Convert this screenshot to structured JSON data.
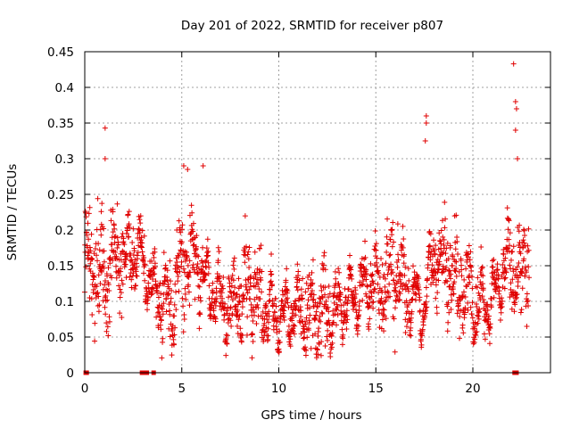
{
  "chart_data": {
    "type": "scatter",
    "title": "Day 201 of 2022, SRMTID for receiver p807",
    "xlabel": "GPS time / hours",
    "ylabel": "SRMTID / TECUs",
    "xlim": [
      0,
      24
    ],
    "ylim": [
      0,
      0.45
    ],
    "xticks": [
      0,
      5,
      10,
      15,
      20
    ],
    "xtick_labels": [
      "0",
      "5",
      "10",
      "15",
      "20"
    ],
    "yticks": [
      0,
      0.05,
      0.1,
      0.15,
      0.2,
      0.25,
      0.3,
      0.35,
      0.4,
      0.45
    ],
    "ytick_labels": [
      "0",
      "0.05",
      "0.1",
      "0.15",
      "0.2",
      "0.25",
      "0.3",
      "0.35",
      "0.4",
      "0.45"
    ],
    "grid": true,
    "marker": "+",
    "color": "#e00000",
    "trend": {
      "x": [
        0,
        0.5,
        1,
        1.5,
        2,
        2.5,
        3,
        3.5,
        4,
        4.5,
        5,
        5.5,
        6,
        6.5,
        7,
        7.5,
        8,
        8.5,
        9,
        9.5,
        10,
        10.5,
        11,
        11.5,
        12,
        12.5,
        13,
        13.5,
        14,
        14.5,
        15,
        15.5,
        16,
        16.5,
        17,
        17.5,
        18,
        18.5,
        19,
        19.5,
        20,
        20.5,
        21,
        21.5,
        22,
        22.5,
        23
      ],
      "y": [
        0.16,
        0.15,
        0.14,
        0.155,
        0.165,
        0.17,
        0.16,
        0.12,
        0.11,
        0.09,
        0.15,
        0.16,
        0.14,
        0.12,
        0.1,
        0.095,
        0.1,
        0.12,
        0.1,
        0.085,
        0.08,
        0.085,
        0.09,
        0.09,
        0.085,
        0.08,
        0.09,
        0.1,
        0.11,
        0.12,
        0.13,
        0.13,
        0.14,
        0.12,
        0.1,
        0.09,
        0.17,
        0.16,
        0.14,
        0.12,
        0.1,
        0.09,
        0.1,
        0.14,
        0.15,
        0.13,
        0.19
      ]
    },
    "highlights": [
      {
        "x": 1.05,
        "y": 0.343
      },
      {
        "x": 1.05,
        "y": 0.3
      },
      {
        "x": 5.1,
        "y": 0.29
      },
      {
        "x": 5.3,
        "y": 0.285
      },
      {
        "x": 6.1,
        "y": 0.29
      },
      {
        "x": 17.6,
        "y": 0.36
      },
      {
        "x": 17.6,
        "y": 0.35
      },
      {
        "x": 17.55,
        "y": 0.325
      },
      {
        "x": 22.1,
        "y": 0.433
      },
      {
        "x": 22.2,
        "y": 0.38
      },
      {
        "x": 22.25,
        "y": 0.37
      },
      {
        "x": 22.2,
        "y": 0.34
      },
      {
        "x": 22.3,
        "y": 0.3
      }
    ],
    "zero_points": [
      0.05,
      0.1,
      2.95,
      3.05,
      3.1,
      3.2,
      3.55,
      22.15,
      22.25
    ]
  }
}
